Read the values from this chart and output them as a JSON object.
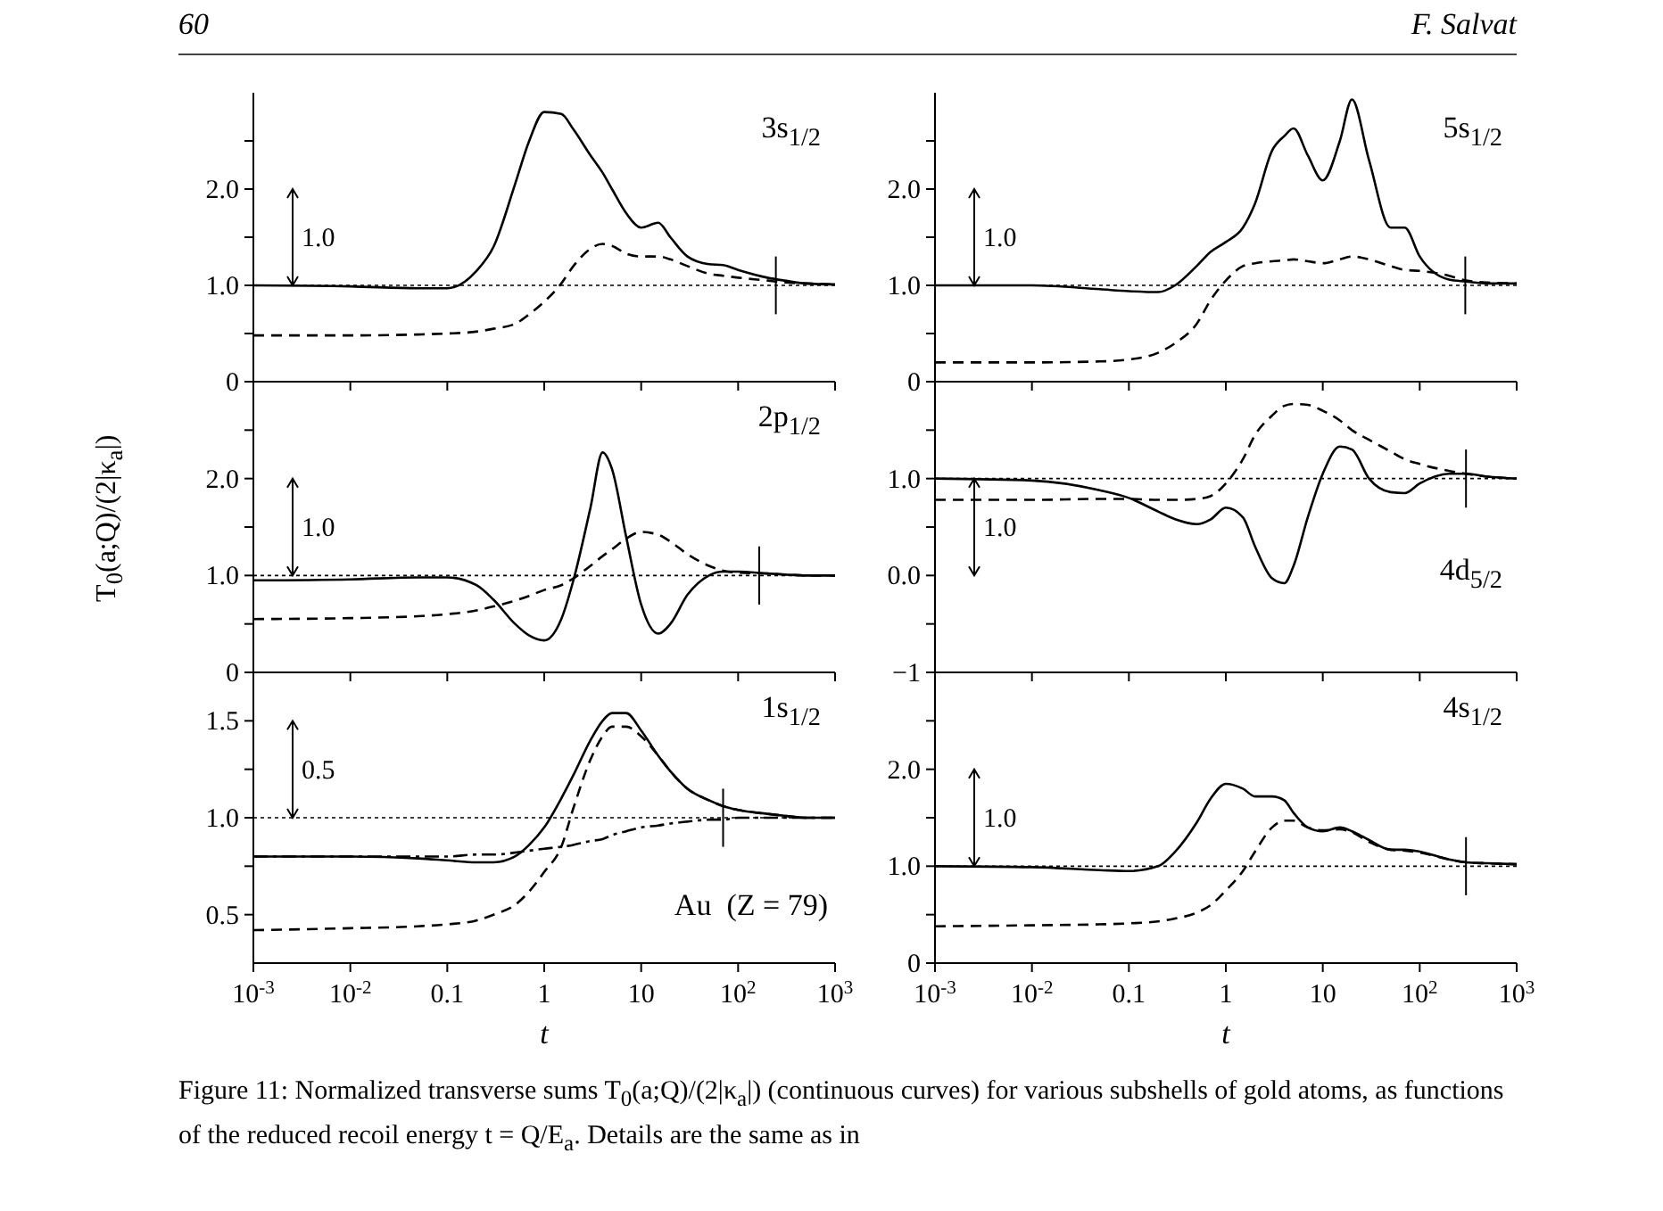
{
  "chart_data": [
    {
      "type": "line",
      "tick_labels": "y",
      "xlim": [
        0.001,
        1000
      ],
      "ylim": [
        0,
        3
      ],
      "log": "x",
      "x": [
        0.001,
        0.01,
        0.05,
        0.1,
        0.2,
        0.3,
        0.5,
        0.7,
        1,
        1.5,
        2,
        3,
        4,
        5,
        7,
        10,
        15,
        20,
        30,
        50,
        70,
        100,
        200,
        300,
        500,
        1000
      ],
      "xticks": [
        {
          "value": 0.001,
          "label": null
        },
        {
          "value": 0.01,
          "label": null
        },
        {
          "value": 0.1,
          "label": null
        },
        {
          "value": 1,
          "label": null
        },
        {
          "value": 10,
          "label": null
        },
        {
          "value": 100,
          "label": null
        },
        {
          "value": 1000,
          "label": null
        }
      ],
      "yticks": [
        0,
        {
          "value": 0.5,
          "label": null
        },
        {
          "value": 1,
          "label": "1.0"
        },
        {
          "value": 1.5,
          "label": null
        },
        {
          "value": 2,
          "label": "2.0"
        },
        {
          "value": 2.5,
          "label": null
        }
      ],
      "series": [
        {
          "color": "#000000",
          "line_style": "solid",
          "values": [
            1.0,
            0.99,
            0.97,
            0.97,
            1.15,
            1.4,
            2.05,
            2.5,
            2.8,
            2.78,
            2.62,
            2.35,
            2.17,
            2.0,
            1.75,
            1.6,
            1.65,
            1.5,
            1.3,
            1.22,
            1.21,
            1.16,
            1.08,
            1.05,
            1.02,
            1.01
          ]
        },
        {
          "color": "#000000",
          "line_style": "dashed",
          "values": [
            0.48,
            0.48,
            0.49,
            0.5,
            0.52,
            0.55,
            0.6,
            0.7,
            0.83,
            1.02,
            1.2,
            1.38,
            1.43,
            1.41,
            1.33,
            1.3,
            1.3,
            1.27,
            1.2,
            1.12,
            1.1,
            1.08,
            1.05,
            1.03,
            1.02,
            1.01
          ]
        }
      ],
      "ref_lines": [
        {
          "axis": "y",
          "value": 1,
          "line_style": "dotted"
        },
        {
          "axis": "x",
          "value": 245
        }
      ],
      "annotations": [
        "3s$_{1/2}$",
        "1.0",
        "60",
        "F. Salvat",
        "Figure 11: Normalized transverse sums T$_{0}$(a;Q)/(2|κ$_{a}$|) (continuous curves) for various subshells of gold atoms, as functions of the reduced recoil energy t = Q/E$_{a}$. Details are the same as in"
      ]
    },
    {
      "type": "line",
      "tick_labels": "y",
      "xlim": [
        0.001,
        1000
      ],
      "ylim": [
        0,
        3
      ],
      "log": "x",
      "x": [
        0.001,
        0.01,
        0.05,
        0.1,
        0.2,
        0.3,
        0.5,
        0.7,
        1,
        1.5,
        2,
        3,
        4,
        5,
        7,
        10,
        15,
        20,
        30,
        50,
        70,
        100,
        200,
        300,
        500,
        1000
      ],
      "xticks": [
        {
          "value": 0.001,
          "label": null
        },
        {
          "value": 0.01,
          "label": null
        },
        {
          "value": 0.1,
          "label": null
        },
        {
          "value": 1,
          "label": null
        },
        {
          "value": 10,
          "label": null
        },
        {
          "value": 100,
          "label": null
        },
        {
          "value": 1000,
          "label": null
        }
      ],
      "yticks": [
        0,
        {
          "value": 0.5,
          "label": null
        },
        {
          "value": 1,
          "label": "1.0"
        },
        {
          "value": 1.5,
          "label": null
        },
        {
          "value": 2,
          "label": "2.0"
        },
        {
          "value": 2.5,
          "label": null
        }
      ],
      "series": [
        {
          "color": "#000000",
          "line_style": "solid",
          "values": [
            1.0,
            1.0,
            0.96,
            0.94,
            0.93,
            1.0,
            1.2,
            1.35,
            1.45,
            1.6,
            1.85,
            2.4,
            2.55,
            2.63,
            2.35,
            2.09,
            2.5,
            2.93,
            2.3,
            1.6,
            1.6,
            1.3,
            1.06,
            1.04,
            1.02,
            1.02
          ]
        },
        {
          "color": "#000000",
          "line_style": "dashed",
          "values": [
            0.2,
            0.2,
            0.21,
            0.23,
            0.3,
            0.4,
            0.6,
            0.85,
            1.05,
            1.2,
            1.23,
            1.25,
            1.26,
            1.27,
            1.25,
            1.23,
            1.27,
            1.3,
            1.27,
            1.2,
            1.16,
            1.15,
            1.1,
            1.05,
            1.03,
            1.02
          ]
        }
      ],
      "ref_lines": [
        {
          "axis": "y",
          "value": 1,
          "line_style": "dotted"
        },
        {
          "axis": "x",
          "value": 295
        }
      ],
      "annotations": [
        "5s$_{1/2}$",
        "1.0"
      ]
    },
    {
      "type": "line",
      "tick_labels": "y",
      "ylabel": "T$_{0}$(a;Q)/(2|κ$_{a}$|)",
      "xlim": [
        0.001,
        1000
      ],
      "ylim": [
        0,
        3
      ],
      "log": "x",
      "x": [
        0.001,
        0.01,
        0.05,
        0.1,
        0.2,
        0.3,
        0.5,
        0.7,
        1,
        1.5,
        2,
        3,
        4,
        5,
        7,
        10,
        15,
        20,
        30,
        50,
        70,
        100,
        200,
        300,
        500,
        1000
      ],
      "xticks": [
        {
          "value": 0.001,
          "label": null
        },
        {
          "value": 0.01,
          "label": null
        },
        {
          "value": 0.1,
          "label": null
        },
        {
          "value": 1,
          "label": null
        },
        {
          "value": 10,
          "label": null
        },
        {
          "value": 100,
          "label": null
        },
        {
          "value": 1000,
          "label": null
        }
      ],
      "yticks": [
        0,
        {
          "value": 0.5,
          "label": null
        },
        {
          "value": 1,
          "label": "1.0"
        },
        {
          "value": 1.5,
          "label": null
        },
        {
          "value": 2,
          "label": "2.0"
        },
        {
          "value": 2.5,
          "label": null
        }
      ],
      "series": [
        {
          "color": "#000000",
          "line_style": "solid",
          "values": [
            0.95,
            0.96,
            0.98,
            0.98,
            0.9,
            0.75,
            0.5,
            0.38,
            0.33,
            0.55,
            0.95,
            1.7,
            2.27,
            2.1,
            1.4,
            0.7,
            0.4,
            0.5,
            0.8,
            1.0,
            1.04,
            1.04,
            1.02,
            1.01,
            1.0,
            1.0
          ]
        },
        {
          "color": "#000000",
          "line_style": "dashed",
          "values": [
            0.55,
            0.56,
            0.58,
            0.6,
            0.64,
            0.68,
            0.74,
            0.79,
            0.85,
            0.9,
            0.97,
            1.1,
            1.2,
            1.27,
            1.38,
            1.45,
            1.42,
            1.35,
            1.22,
            1.1,
            1.05,
            1.03,
            1.02,
            1.01,
            1.0,
            1.0
          ]
        }
      ],
      "ref_lines": [
        {
          "axis": "y",
          "value": 1,
          "line_style": "dotted"
        },
        {
          "axis": "x",
          "value": 165
        }
      ],
      "annotations": [
        "2p$_{1/2}$",
        "1.0"
      ]
    },
    {
      "type": "line",
      "tick_labels": "y",
      "xlim": [
        0.001,
        1000
      ],
      "ylim": [
        -1,
        2
      ],
      "log": "x",
      "x": [
        0.001,
        0.01,
        0.05,
        0.1,
        0.2,
        0.3,
        0.5,
        0.7,
        1,
        1.5,
        2,
        3,
        4,
        5,
        7,
        10,
        15,
        20,
        30,
        50,
        70,
        100,
        200,
        300,
        500,
        1000
      ],
      "xticks": [
        {
          "value": 0.001,
          "label": null
        },
        {
          "value": 0.01,
          "label": null
        },
        {
          "value": 0.1,
          "label": null
        },
        {
          "value": 1,
          "label": null
        },
        {
          "value": 10,
          "label": null
        },
        {
          "value": 100,
          "label": null
        },
        {
          "value": 1000,
          "label": null
        }
      ],
      "yticks": [
        {
          "value": -1,
          "label": "−1"
        },
        {
          "value": -0.5,
          "label": null
        },
        {
          "value": 0,
          "label": "0.0"
        },
        {
          "value": 0.5,
          "label": null
        },
        {
          "value": 1,
          "label": "1.0"
        },
        {
          "value": 1.5,
          "label": null
        }
      ],
      "series": [
        {
          "color": "#000000",
          "line_style": "solid",
          "values": [
            1.0,
            0.98,
            0.88,
            0.8,
            0.66,
            0.58,
            0.53,
            0.58,
            0.7,
            0.6,
            0.3,
            -0.03,
            -0.08,
            0.1,
            0.6,
            1.05,
            1.33,
            1.3,
            1.0,
            0.86,
            0.85,
            0.95,
            1.05,
            1.05,
            1.02,
            1.0
          ]
        },
        {
          "color": "#000000",
          "line_style": "dashed",
          "values": [
            0.78,
            0.78,
            0.79,
            0.79,
            0.78,
            0.78,
            0.79,
            0.82,
            0.95,
            1.2,
            1.45,
            1.65,
            1.75,
            1.77,
            1.76,
            1.7,
            1.6,
            1.5,
            1.4,
            1.28,
            1.2,
            1.15,
            1.08,
            1.05,
            1.02,
            1.0
          ]
        }
      ],
      "ref_lines": [
        {
          "axis": "y",
          "value": 1,
          "line_style": "dotted"
        },
        {
          "axis": "x",
          "value": 300
        }
      ],
      "annotations": [
        "4d$_{5/2}$",
        "1.0"
      ]
    },
    {
      "type": "line",
      "xlabel": "t",
      "xlim": [
        0.001,
        1000
      ],
      "ylim": [
        0.25,
        1.75
      ],
      "log": "x",
      "x": [
        0.001,
        0.01,
        0.05,
        0.1,
        0.2,
        0.3,
        0.5,
        0.7,
        1,
        1.5,
        2,
        3,
        4,
        5,
        7,
        10,
        15,
        20,
        30,
        50,
        70,
        100,
        200,
        300,
        500,
        1000
      ],
      "xticks": [
        {
          "value": 0.001,
          "label": "10$^{-3}$"
        },
        {
          "value": 0.01,
          "label": "10$^{-2}$"
        },
        {
          "value": 0.1,
          "label": "0.1"
        },
        {
          "value": 1,
          "label": "1"
        },
        {
          "value": 10,
          "label": "10"
        },
        {
          "value": 100,
          "label": "10$^{2}$"
        },
        {
          "value": 1000,
          "label": "10$^{3}$"
        }
      ],
      "yticks": [
        0.5,
        {
          "value": 0.75,
          "label": null
        },
        {
          "value": 1,
          "label": "1.0"
        },
        {
          "value": 1.25,
          "label": null
        },
        1.5
      ],
      "series": [
        {
          "color": "#000000",
          "line_style": "solid",
          "values": [
            0.8,
            0.8,
            0.79,
            0.78,
            0.77,
            0.77,
            0.8,
            0.86,
            0.95,
            1.1,
            1.22,
            1.4,
            1.5,
            1.54,
            1.54,
            1.45,
            1.32,
            1.24,
            1.15,
            1.09,
            1.06,
            1.04,
            1.02,
            1.01,
            1.0,
            1.0
          ]
        },
        {
          "color": "#000000",
          "line_style": "dashed",
          "values": [
            0.42,
            0.43,
            0.44,
            0.45,
            0.47,
            0.5,
            0.55,
            0.62,
            0.72,
            0.85,
            1.05,
            1.3,
            1.42,
            1.47,
            1.47,
            1.42,
            1.32,
            1.24,
            1.15,
            1.09,
            1.06,
            1.04,
            1.02,
            1.01,
            1.0,
            1.0
          ]
        },
        {
          "color": "#000000",
          "line_style": "dashdot",
          "values": [
            0.8,
            0.8,
            0.8,
            0.8,
            0.81,
            0.81,
            0.82,
            0.83,
            0.84,
            0.85,
            0.86,
            0.88,
            0.89,
            0.91,
            0.93,
            0.95,
            0.96,
            0.97,
            0.98,
            0.99,
            0.99,
            1.0,
            1.0,
            1.0,
            1.0,
            1.0
          ]
        }
      ],
      "ref_lines": [
        {
          "axis": "y",
          "value": 1,
          "line_style": "dotted"
        },
        {
          "axis": "x",
          "value": 70
        }
      ],
      "annotations": [
        "1s$_{1/2}$",
        "0.5",
        "Au  (Z = 79)"
      ]
    },
    {
      "type": "line",
      "xlabel": "t",
      "xlim": [
        0.001,
        1000
      ],
      "ylim": [
        0,
        3
      ],
      "log": "x",
      "x": [
        0.001,
        0.01,
        0.05,
        0.1,
        0.2,
        0.3,
        0.5,
        0.7,
        1,
        1.5,
        2,
        3,
        4,
        5,
        7,
        10,
        15,
        20,
        30,
        50,
        70,
        100,
        200,
        300,
        500,
        1000
      ],
      "xticks": [
        {
          "value": 0.001,
          "label": "10$^{-3}$"
        },
        {
          "value": 0.01,
          "label": "10$^{-2}$"
        },
        {
          "value": 0.1,
          "label": "0.1"
        },
        {
          "value": 1,
          "label": "1"
        },
        {
          "value": 10,
          "label": "10"
        },
        {
          "value": 100,
          "label": "10$^{2}$"
        },
        {
          "value": 1000,
          "label": "10$^{3}$"
        }
      ],
      "yticks": [
        0,
        {
          "value": 0.5,
          "label": null
        },
        {
          "value": 1,
          "label": "1.0"
        },
        {
          "value": 1.5,
          "label": null
        },
        {
          "value": 2,
          "label": "2.0"
        },
        {
          "value": 2.5,
          "label": null
        }
      ],
      "series": [
        {
          "color": "#000000",
          "line_style": "solid",
          "values": [
            1.0,
            0.99,
            0.96,
            0.95,
            1.0,
            1.15,
            1.45,
            1.7,
            1.85,
            1.8,
            1.72,
            1.72,
            1.68,
            1.55,
            1.4,
            1.36,
            1.4,
            1.36,
            1.27,
            1.17,
            1.17,
            1.15,
            1.07,
            1.04,
            1.03,
            1.02
          ]
        },
        {
          "color": "#000000",
          "line_style": "dashed",
          "values": [
            0.38,
            0.39,
            0.4,
            0.41,
            0.43,
            0.46,
            0.52,
            0.6,
            0.75,
            0.95,
            1.15,
            1.4,
            1.47,
            1.47,
            1.4,
            1.37,
            1.38,
            1.35,
            1.25,
            1.17,
            1.16,
            1.14,
            1.07,
            1.04,
            1.03,
            1.02
          ]
        }
      ],
      "ref_lines": [
        {
          "axis": "y",
          "value": 1,
          "line_style": "dotted"
        },
        {
          "axis": "x",
          "value": 300
        }
      ],
      "annotations": [
        "4s$_{1/2}$",
        "1.0"
      ]
    }
  ]
}
